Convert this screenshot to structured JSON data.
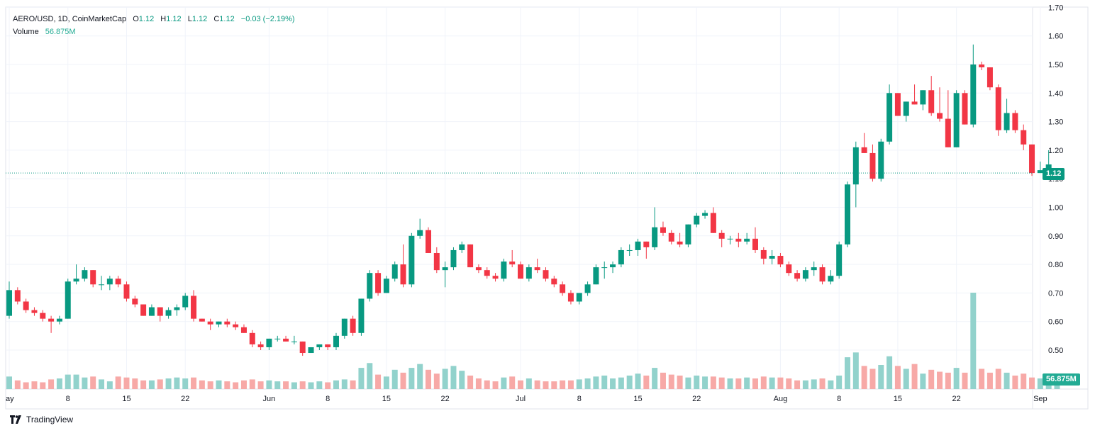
{
  "header": {
    "symbol": "AERO/USD, 1D, CoinMarketCap",
    "o_label": "O",
    "o_value": "1.12",
    "h_label": "H",
    "h_value": "1.12",
    "l_label": "L",
    "l_value": "1.12",
    "c_label": "C",
    "c_value": "1.12",
    "change": "−0.03 (−2.19%)",
    "volume_label": "Volume",
    "volume_value": "56.875M"
  },
  "price_badge": "1.12",
  "volume_badge": "56.875M",
  "logo_text": "TradingView",
  "colors": {
    "up": "#089981",
    "down": "#f23645",
    "up_vol": "#92d2cc",
    "down_vol": "#f7a9a7",
    "grid": "#f0f3fa"
  },
  "chart_data": {
    "type": "candlestick",
    "price_axis": {
      "min": 0.45,
      "max": 1.7,
      "ticks": [
        "0.50",
        "0.60",
        "0.70",
        "0.80",
        "0.90",
        "1.00",
        "1.10",
        "1.20",
        "1.30",
        "1.40",
        "1.50",
        "1.60",
        "1.70"
      ]
    },
    "x_ticks": [
      {
        "label": "ay",
        "day": 0
      },
      {
        "label": "8",
        "day": 7
      },
      {
        "label": "15",
        "day": 14
      },
      {
        "label": "22",
        "day": 21
      },
      {
        "label": "Jun",
        "day": 31
      },
      {
        "label": "8",
        "day": 38
      },
      {
        "label": "15",
        "day": 45
      },
      {
        "label": "22",
        "day": 52
      },
      {
        "label": "Jul",
        "day": 61
      },
      {
        "label": "8",
        "day": 68
      },
      {
        "label": "15",
        "day": 75
      },
      {
        "label": "22",
        "day": 82
      },
      {
        "label": "Aug",
        "day": 92
      },
      {
        "label": "8",
        "day": 99
      },
      {
        "label": "15",
        "day": 106
      },
      {
        "label": "22",
        "day": 113
      },
      {
        "label": "Sep",
        "day": 123
      }
    ],
    "last_price": 1.12,
    "volume_max": 100,
    "candles": [
      [
        0.62,
        0.74,
        0.61,
        0.71,
        13
      ],
      [
        0.71,
        0.72,
        0.66,
        0.67,
        9
      ],
      [
        0.67,
        0.68,
        0.63,
        0.64,
        7
      ],
      [
        0.64,
        0.65,
        0.62,
        0.63,
        8
      ],
      [
        0.63,
        0.64,
        0.6,
        0.61,
        7
      ],
      [
        0.61,
        0.62,
        0.56,
        0.6,
        10
      ],
      [
        0.6,
        0.62,
        0.59,
        0.61,
        11
      ],
      [
        0.61,
        0.75,
        0.61,
        0.74,
        15
      ],
      [
        0.74,
        0.8,
        0.73,
        0.75,
        15
      ],
      [
        0.75,
        0.79,
        0.74,
        0.78,
        12
      ],
      [
        0.78,
        0.78,
        0.72,
        0.73,
        13
      ],
      [
        0.73,
        0.76,
        0.71,
        0.73,
        10
      ],
      [
        0.73,
        0.76,
        0.71,
        0.75,
        8
      ],
      [
        0.75,
        0.76,
        0.72,
        0.73,
        13
      ],
      [
        0.73,
        0.74,
        0.67,
        0.68,
        12
      ],
      [
        0.68,
        0.69,
        0.65,
        0.66,
        11
      ],
      [
        0.66,
        0.66,
        0.62,
        0.62,
        9
      ],
      [
        0.62,
        0.66,
        0.62,
        0.65,
        9
      ],
      [
        0.65,
        0.65,
        0.6,
        0.62,
        10
      ],
      [
        0.62,
        0.65,
        0.61,
        0.64,
        11
      ],
      [
        0.64,
        0.66,
        0.62,
        0.65,
        12
      ],
      [
        0.65,
        0.7,
        0.64,
        0.69,
        11
      ],
      [
        0.69,
        0.71,
        0.6,
        0.61,
        12
      ],
      [
        0.61,
        0.61,
        0.6,
        0.6,
        9
      ],
      [
        0.6,
        0.61,
        0.57,
        0.59,
        8
      ],
      [
        0.59,
        0.6,
        0.58,
        0.6,
        9
      ],
      [
        0.6,
        0.61,
        0.58,
        0.59,
        8
      ],
      [
        0.59,
        0.6,
        0.57,
        0.58,
        7
      ],
      [
        0.58,
        0.59,
        0.56,
        0.56,
        9
      ],
      [
        0.56,
        0.57,
        0.51,
        0.52,
        10
      ],
      [
        0.52,
        0.53,
        0.5,
        0.51,
        8
      ],
      [
        0.51,
        0.54,
        0.5,
        0.54,
        9
      ],
      [
        0.54,
        0.55,
        0.53,
        0.54,
        8
      ],
      [
        0.54,
        0.55,
        0.53,
        0.53,
        8
      ],
      [
        0.53,
        0.55,
        0.52,
        0.53,
        7
      ],
      [
        0.53,
        0.53,
        0.48,
        0.49,
        8
      ],
      [
        0.49,
        0.51,
        0.49,
        0.51,
        7
      ],
      [
        0.51,
        0.52,
        0.5,
        0.52,
        8
      ],
      [
        0.52,
        0.52,
        0.5,
        0.51,
        7
      ],
      [
        0.51,
        0.56,
        0.5,
        0.55,
        9
      ],
      [
        0.55,
        0.61,
        0.54,
        0.61,
        10
      ],
      [
        0.61,
        0.62,
        0.55,
        0.56,
        9
      ],
      [
        0.56,
        0.68,
        0.55,
        0.68,
        22
      ],
      [
        0.68,
        0.78,
        0.67,
        0.77,
        27
      ],
      [
        0.77,
        0.78,
        0.69,
        0.7,
        15
      ],
      [
        0.7,
        0.76,
        0.7,
        0.75,
        13
      ],
      [
        0.75,
        0.81,
        0.74,
        0.8,
        20
      ],
      [
        0.8,
        0.87,
        0.72,
        0.73,
        17
      ],
      [
        0.73,
        0.91,
        0.72,
        0.9,
        22
      ],
      [
        0.9,
        0.96,
        0.89,
        0.92,
        26
      ],
      [
        0.92,
        0.93,
        0.84,
        0.84,
        20
      ],
      [
        0.84,
        0.86,
        0.77,
        0.78,
        16
      ],
      [
        0.78,
        0.81,
        0.72,
        0.79,
        21
      ],
      [
        0.79,
        0.86,
        0.78,
        0.85,
        24
      ],
      [
        0.85,
        0.88,
        0.84,
        0.87,
        19
      ],
      [
        0.87,
        0.87,
        0.79,
        0.79,
        14
      ],
      [
        0.79,
        0.8,
        0.77,
        0.78,
        11
      ],
      [
        0.78,
        0.79,
        0.75,
        0.76,
        9
      ],
      [
        0.76,
        0.77,
        0.74,
        0.75,
        8
      ],
      [
        0.75,
        0.82,
        0.74,
        0.81,
        12
      ],
      [
        0.81,
        0.85,
        0.79,
        0.8,
        13
      ],
      [
        0.8,
        0.81,
        0.75,
        0.75,
        9
      ],
      [
        0.75,
        0.8,
        0.74,
        0.79,
        11
      ],
      [
        0.79,
        0.82,
        0.77,
        0.78,
        9
      ],
      [
        0.78,
        0.79,
        0.74,
        0.75,
        8
      ],
      [
        0.75,
        0.76,
        0.72,
        0.73,
        8
      ],
      [
        0.73,
        0.74,
        0.69,
        0.7,
        9
      ],
      [
        0.7,
        0.71,
        0.66,
        0.67,
        9
      ],
      [
        0.67,
        0.7,
        0.66,
        0.7,
        10
      ],
      [
        0.7,
        0.74,
        0.69,
        0.73,
        11
      ],
      [
        0.73,
        0.8,
        0.73,
        0.79,
        13
      ],
      [
        0.79,
        0.81,
        0.75,
        0.79,
        14
      ],
      [
        0.79,
        0.81,
        0.77,
        0.8,
        11
      ],
      [
        0.8,
        0.86,
        0.79,
        0.85,
        12
      ],
      [
        0.85,
        0.87,
        0.83,
        0.85,
        14
      ],
      [
        0.85,
        0.89,
        0.83,
        0.88,
        16
      ],
      [
        0.88,
        0.88,
        0.82,
        0.86,
        14
      ],
      [
        0.86,
        1.0,
        0.85,
        0.93,
        22
      ],
      [
        0.93,
        0.95,
        0.9,
        0.91,
        17
      ],
      [
        0.91,
        0.92,
        0.87,
        0.88,
        15
      ],
      [
        0.88,
        0.91,
        0.86,
        0.87,
        14
      ],
      [
        0.87,
        0.94,
        0.86,
        0.94,
        12
      ],
      [
        0.94,
        0.98,
        0.93,
        0.97,
        14
      ],
      [
        0.97,
        0.99,
        0.96,
        0.98,
        13
      ],
      [
        0.98,
        1.0,
        0.91,
        0.91,
        13
      ],
      [
        0.91,
        0.92,
        0.86,
        0.89,
        12
      ],
      [
        0.89,
        0.9,
        0.87,
        0.89,
        11
      ],
      [
        0.89,
        0.91,
        0.86,
        0.88,
        11
      ],
      [
        0.88,
        0.91,
        0.87,
        0.89,
        12
      ],
      [
        0.89,
        0.93,
        0.84,
        0.85,
        11
      ],
      [
        0.85,
        0.86,
        0.8,
        0.82,
        13
      ],
      [
        0.82,
        0.85,
        0.8,
        0.83,
        12
      ],
      [
        0.83,
        0.84,
        0.79,
        0.8,
        12
      ],
      [
        0.8,
        0.81,
        0.76,
        0.77,
        11
      ],
      [
        0.77,
        0.78,
        0.74,
        0.75,
        9
      ],
      [
        0.75,
        0.79,
        0.74,
        0.78,
        9
      ],
      [
        0.78,
        0.81,
        0.76,
        0.79,
        10
      ],
      [
        0.79,
        0.8,
        0.73,
        0.74,
        11
      ],
      [
        0.74,
        0.78,
        0.73,
        0.76,
        9
      ],
      [
        0.76,
        0.88,
        0.75,
        0.87,
        14
      ],
      [
        0.87,
        1.09,
        0.86,
        1.08,
        33
      ],
      [
        1.08,
        1.23,
        1.0,
        1.21,
        38
      ],
      [
        1.21,
        1.26,
        1.19,
        1.19,
        24
      ],
      [
        1.19,
        1.22,
        1.09,
        1.1,
        21
      ],
      [
        1.1,
        1.24,
        1.09,
        1.23,
        25
      ],
      [
        1.23,
        1.43,
        1.22,
        1.4,
        34
      ],
      [
        1.4,
        1.4,
        1.32,
        1.32,
        24
      ],
      [
        1.32,
        1.37,
        1.3,
        1.37,
        21
      ],
      [
        1.37,
        1.43,
        1.36,
        1.36,
        26
      ],
      [
        1.36,
        1.41,
        1.34,
        1.41,
        16
      ],
      [
        1.41,
        1.46,
        1.32,
        1.33,
        20
      ],
      [
        1.33,
        1.42,
        1.3,
        1.31,
        18
      ],
      [
        1.31,
        1.41,
        1.21,
        1.21,
        17
      ],
      [
        1.21,
        1.41,
        1.21,
        1.4,
        22
      ],
      [
        1.4,
        1.41,
        1.29,
        1.29,
        17
      ],
      [
        1.29,
        1.57,
        1.28,
        1.5,
        100
      ],
      [
        1.5,
        1.51,
        1.48,
        1.49,
        21
      ],
      [
        1.49,
        1.49,
        1.41,
        1.42,
        17
      ],
      [
        1.42,
        1.43,
        1.25,
        1.27,
        21
      ],
      [
        1.27,
        1.38,
        1.26,
        1.33,
        17
      ],
      [
        1.33,
        1.34,
        1.26,
        1.27,
        14
      ],
      [
        1.27,
        1.29,
        1.2,
        1.22,
        16
      ],
      [
        1.22,
        1.22,
        1.11,
        1.12,
        12
      ],
      [
        1.12,
        1.16,
        1.12,
        1.13,
        11
      ],
      [
        1.13,
        1.2,
        1.12,
        1.15,
        10
      ],
      [
        1.12,
        1.12,
        1.12,
        1.12,
        10
      ]
    ]
  }
}
